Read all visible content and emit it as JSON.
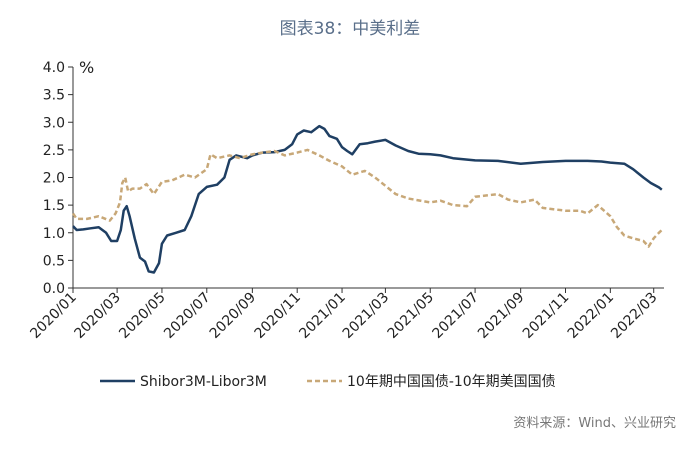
{
  "source": "资料来源：Wind、兴业研究",
  "chart_data": {
    "type": "line",
    "title": "图表38：中美利差",
    "unit": "%",
    "ylim": [
      0,
      4
    ],
    "yticks": [
      "0.0",
      "0.5",
      "1.0",
      "1.5",
      "2.0",
      "2.5",
      "3.0",
      "3.5",
      "4.0"
    ],
    "xlim": [
      "2020-01-01",
      "2022-03-15"
    ],
    "xticks": [
      {
        "date": "2020-01-01",
        "label": "2020/01"
      },
      {
        "date": "2020-03-01",
        "label": "2020/03"
      },
      {
        "date": "2020-05-01",
        "label": "2020/05"
      },
      {
        "date": "2020-07-01",
        "label": "2020/07"
      },
      {
        "date": "2020-09-01",
        "label": "2020/09"
      },
      {
        "date": "2020-11-01",
        "label": "2020/11"
      },
      {
        "date": "2021-01-01",
        "label": "2021/01"
      },
      {
        "date": "2021-03-01",
        "label": "2021/03"
      },
      {
        "date": "2021-05-01",
        "label": "2021/05"
      },
      {
        "date": "2021-07-01",
        "label": "2021/07"
      },
      {
        "date": "2021-09-01",
        "label": "2021/09"
      },
      {
        "date": "2021-11-01",
        "label": "2021/11"
      },
      {
        "date": "2022-01-01",
        "label": "2022/01"
      },
      {
        "date": "2022-03-01",
        "label": "2022/03"
      }
    ],
    "grid": false,
    "legend_position": "bottom",
    "series": [
      {
        "name": "Shibor3M-Libor3M",
        "color": "#1f3f63",
        "dash": "solid",
        "points": [
          [
            "2020-01-01",
            1.12
          ],
          [
            "2020-01-06",
            1.05
          ],
          [
            "2020-01-15",
            1.06
          ],
          [
            "2020-01-25",
            1.08
          ],
          [
            "2020-02-05",
            1.1
          ],
          [
            "2020-02-15",
            1.0
          ],
          [
            "2020-02-22",
            0.85
          ],
          [
            "2020-03-01",
            0.85
          ],
          [
            "2020-03-06",
            1.05
          ],
          [
            "2020-03-10",
            1.4
          ],
          [
            "2020-03-14",
            1.48
          ],
          [
            "2020-03-18",
            1.3
          ],
          [
            "2020-03-25",
            0.9
          ],
          [
            "2020-04-01",
            0.55
          ],
          [
            "2020-04-08",
            0.48
          ],
          [
            "2020-04-13",
            0.3
          ],
          [
            "2020-04-20",
            0.28
          ],
          [
            "2020-04-27",
            0.45
          ],
          [
            "2020-05-01",
            0.8
          ],
          [
            "2020-05-08",
            0.95
          ],
          [
            "2020-05-20",
            1.0
          ],
          [
            "2020-06-01",
            1.05
          ],
          [
            "2020-06-10",
            1.3
          ],
          [
            "2020-06-20",
            1.7
          ],
          [
            "2020-07-01",
            1.83
          ],
          [
            "2020-07-15",
            1.87
          ],
          [
            "2020-07-25",
            2.0
          ],
          [
            "2020-08-01",
            2.32
          ],
          [
            "2020-08-10",
            2.4
          ],
          [
            "2020-08-25",
            2.35
          ],
          [
            "2020-09-01",
            2.4
          ],
          [
            "2020-09-15",
            2.45
          ],
          [
            "2020-10-01",
            2.46
          ],
          [
            "2020-10-15",
            2.5
          ],
          [
            "2020-10-25",
            2.6
          ],
          [
            "2020-11-01",
            2.78
          ],
          [
            "2020-11-10",
            2.85
          ],
          [
            "2020-11-20",
            2.82
          ],
          [
            "2020-12-01",
            2.93
          ],
          [
            "2020-12-08",
            2.88
          ],
          [
            "2020-12-15",
            2.75
          ],
          [
            "2020-12-25",
            2.7
          ],
          [
            "2021-01-01",
            2.55
          ],
          [
            "2021-01-08",
            2.48
          ],
          [
            "2021-01-15",
            2.42
          ],
          [
            "2021-01-25",
            2.6
          ],
          [
            "2021-02-05",
            2.62
          ],
          [
            "2021-02-15",
            2.65
          ],
          [
            "2021-03-01",
            2.68
          ],
          [
            "2021-03-15",
            2.58
          ],
          [
            "2021-04-01",
            2.48
          ],
          [
            "2021-04-15",
            2.43
          ],
          [
            "2021-05-01",
            2.42
          ],
          [
            "2021-05-15",
            2.4
          ],
          [
            "2021-06-01",
            2.35
          ],
          [
            "2021-07-01",
            2.31
          ],
          [
            "2021-08-01",
            2.3
          ],
          [
            "2021-09-01",
            2.25
          ],
          [
            "2021-10-01",
            2.28
          ],
          [
            "2021-11-01",
            2.3
          ],
          [
            "2021-12-01",
            2.3
          ],
          [
            "2021-12-20",
            2.29
          ],
          [
            "2022-01-01",
            2.27
          ],
          [
            "2022-01-20",
            2.25
          ],
          [
            "2022-02-01",
            2.15
          ],
          [
            "2022-02-15",
            2.0
          ],
          [
            "2022-02-25",
            1.9
          ],
          [
            "2022-03-08",
            1.82
          ],
          [
            "2022-03-12",
            1.78
          ]
        ]
      },
      {
        "name": "10年期中国国债-10年期美国国债",
        "color": "#c8a878",
        "dash": "dashed",
        "points": [
          [
            "2020-01-01",
            1.35
          ],
          [
            "2020-01-06",
            1.25
          ],
          [
            "2020-01-20",
            1.25
          ],
          [
            "2020-02-05",
            1.3
          ],
          [
            "2020-02-20",
            1.22
          ],
          [
            "2020-02-28",
            1.35
          ],
          [
            "2020-03-05",
            1.55
          ],
          [
            "2020-03-08",
            1.9
          ],
          [
            "2020-03-12",
            2.0
          ],
          [
            "2020-03-16",
            1.75
          ],
          [
            "2020-03-22",
            1.8
          ],
          [
            "2020-04-01",
            1.8
          ],
          [
            "2020-04-10",
            1.88
          ],
          [
            "2020-04-20",
            1.7
          ],
          [
            "2020-05-01",
            1.92
          ],
          [
            "2020-05-15",
            1.95
          ],
          [
            "2020-06-01",
            2.05
          ],
          [
            "2020-06-15",
            2.0
          ],
          [
            "2020-07-01",
            2.15
          ],
          [
            "2020-07-06",
            2.42
          ],
          [
            "2020-07-15",
            2.35
          ],
          [
            "2020-08-01",
            2.4
          ],
          [
            "2020-08-15",
            2.35
          ],
          [
            "2020-09-01",
            2.42
          ],
          [
            "2020-09-15",
            2.45
          ],
          [
            "2020-10-01",
            2.48
          ],
          [
            "2020-10-15",
            2.4
          ],
          [
            "2020-11-01",
            2.45
          ],
          [
            "2020-11-15",
            2.5
          ],
          [
            "2020-12-01",
            2.4
          ],
          [
            "2020-12-15",
            2.3
          ],
          [
            "2021-01-01",
            2.2
          ],
          [
            "2021-01-15",
            2.05
          ],
          [
            "2021-02-01",
            2.12
          ],
          [
            "2021-02-15",
            2.0
          ],
          [
            "2021-03-01",
            1.85
          ],
          [
            "2021-03-15",
            1.7
          ],
          [
            "2021-04-01",
            1.62
          ],
          [
            "2021-05-01",
            1.55
          ],
          [
            "2021-05-15",
            1.58
          ],
          [
            "2021-06-01",
            1.5
          ],
          [
            "2021-06-20",
            1.48
          ],
          [
            "2021-07-01",
            1.65
          ],
          [
            "2021-08-01",
            1.7
          ],
          [
            "2021-08-15",
            1.6
          ],
          [
            "2021-09-01",
            1.55
          ],
          [
            "2021-09-20",
            1.6
          ],
          [
            "2021-10-01",
            1.45
          ],
          [
            "2021-11-01",
            1.4
          ],
          [
            "2021-11-20",
            1.4
          ],
          [
            "2021-12-01",
            1.35
          ],
          [
            "2021-12-15",
            1.5
          ],
          [
            "2022-01-01",
            1.3
          ],
          [
            "2022-01-10",
            1.1
          ],
          [
            "2022-01-20",
            0.95
          ],
          [
            "2022-02-01",
            0.9
          ],
          [
            "2022-02-15",
            0.85
          ],
          [
            "2022-02-22",
            0.75
          ],
          [
            "2022-03-01",
            0.9
          ],
          [
            "2022-03-08",
            1.0
          ],
          [
            "2022-03-12",
            1.05
          ]
        ]
      }
    ]
  }
}
